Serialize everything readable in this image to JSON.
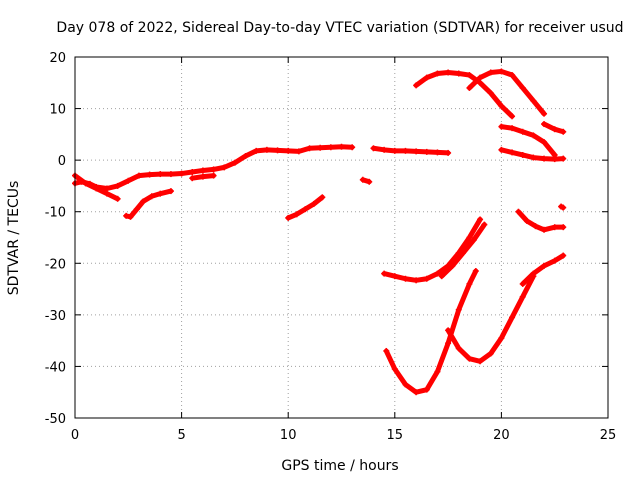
{
  "chart_data": {
    "type": "scatter",
    "title": "Day 078 of 2022, Sidereal Day-to-day VTEC variation (SDTVAR) for receiver usud",
    "xlabel": "GPS time / hours",
    "ylabel": "SDTVAR / TECUs",
    "xlim": [
      0,
      25
    ],
    "ylim": [
      -50,
      20
    ],
    "xticks": [
      0,
      5,
      10,
      15,
      20,
      25
    ],
    "yticks": [
      -50,
      -40,
      -30,
      -20,
      -10,
      0,
      10,
      20
    ],
    "grid": true,
    "marker": "plus",
    "color": "#ff0000",
    "series": [
      {
        "x": [
          0.0,
          0.3,
          0.7,
          1.0,
          1.5,
          2.0,
          2.5,
          3.0,
          3.5,
          4.0,
          4.5,
          5.0,
          5.5,
          6.0,
          6.5,
          7.0,
          7.5,
          8.0,
          8.5,
          9.0,
          9.5,
          10.0,
          10.5,
          11.0,
          11.5,
          12.0,
          12.5,
          13.0
        ],
        "y": [
          -4.5,
          -4.2,
          -4.6,
          -5.2,
          -5.5,
          -5.0,
          -4.0,
          -3.0,
          -2.8,
          -2.7,
          -2.7,
          -2.6,
          -2.3,
          -2.0,
          -1.8,
          -1.4,
          -0.5,
          0.8,
          1.8,
          2.0,
          1.9,
          1.8,
          1.7,
          2.3,
          2.4,
          2.5,
          2.6,
          2.5
        ]
      },
      {
        "x": [
          0.0,
          0.5,
          1.0,
          1.5,
          2.0
        ],
        "y": [
          -3.0,
          -4.5,
          -5.5,
          -6.5,
          -7.5
        ]
      },
      {
        "x": [
          2.4,
          2.6,
          2.9,
          3.2,
          3.6,
          4.0,
          4.5
        ],
        "y": [
          -10.8,
          -11.0,
          -9.5,
          -8.0,
          -7.0,
          -6.5,
          -6.0
        ]
      },
      {
        "x": [
          5.5,
          6.0,
          6.5
        ],
        "y": [
          -3.5,
          -3.2,
          -3.0
        ]
      },
      {
        "x": [
          10.0,
          10.4,
          10.8,
          11.2,
          11.6
        ],
        "y": [
          -11.2,
          -10.5,
          -9.5,
          -8.5,
          -7.2
        ]
      },
      {
        "x": [
          13.5,
          13.8
        ],
        "y": [
          -3.8,
          -4.2
        ]
      },
      {
        "x": [
          14.0,
          14.5,
          15.0,
          15.5,
          16.0,
          16.5,
          17.0,
          17.5
        ],
        "y": [
          2.3,
          2.0,
          1.8,
          1.8,
          1.7,
          1.6,
          1.5,
          1.4
        ]
      },
      {
        "x": [
          14.5,
          15.0,
          15.5,
          16.0,
          16.5,
          17.0,
          17.5,
          18.0,
          18.5,
          19.0
        ],
        "y": [
          -22.0,
          -22.5,
          -23.0,
          -23.3,
          -23.0,
          -22.0,
          -20.5,
          -18.0,
          -15.0,
          -11.5
        ]
      },
      {
        "x": [
          17.2,
          17.7,
          18.2,
          18.7,
          19.2
        ],
        "y": [
          -22.5,
          -20.5,
          -18.0,
          -15.5,
          -12.5
        ]
      },
      {
        "x": [
          14.6,
          15.0,
          15.5,
          16.0,
          16.5,
          17.0,
          17.5,
          18.0,
          18.5,
          18.8
        ],
        "y": [
          -37.0,
          -40.5,
          -43.5,
          -45.0,
          -44.5,
          -41.0,
          -35.5,
          -29.0,
          -24.0,
          -21.5
        ]
      },
      {
        "x": [
          17.5,
          18.0,
          18.5,
          19.0,
          19.5,
          20.0,
          20.5,
          21.0,
          21.5
        ],
        "y": [
          -33.0,
          -36.5,
          -38.5,
          -39.0,
          -37.5,
          -34.5,
          -30.5,
          -26.5,
          -22.5
        ]
      },
      {
        "x": [
          21.0,
          21.5,
          22.0,
          22.5,
          22.9
        ],
        "y": [
          -24.0,
          -22.0,
          -20.5,
          -19.5,
          -18.5
        ]
      },
      {
        "x": [
          20.8,
          21.2,
          21.6,
          22.0,
          22.5,
          22.9
        ],
        "y": [
          -10.0,
          -11.8,
          -12.8,
          -13.5,
          -13.0,
          -13.0
        ]
      },
      {
        "x": [
          22.8,
          22.9
        ],
        "y": [
          -9.0,
          -9.2
        ]
      },
      {
        "x": [
          16.0,
          16.5,
          17.0,
          17.5,
          18.0,
          18.5,
          19.0,
          19.5,
          20.0,
          20.5
        ],
        "y": [
          14.5,
          16.0,
          16.8,
          17.0,
          16.8,
          16.5,
          15.0,
          13.0,
          10.5,
          8.5
        ]
      },
      {
        "x": [
          18.5,
          19.0,
          19.5,
          20.0,
          20.5,
          21.0,
          21.5,
          22.0
        ],
        "y": [
          14.0,
          16.0,
          17.0,
          17.2,
          16.5,
          14.0,
          11.5,
          9.0
        ]
      },
      {
        "x": [
          20.0,
          20.5,
          21.0,
          21.5,
          22.0,
          22.5
        ],
        "y": [
          6.5,
          6.2,
          5.5,
          4.8,
          3.5,
          1.0
        ]
      },
      {
        "x": [
          22.0,
          22.5,
          22.9
        ],
        "y": [
          7.0,
          6.0,
          5.5
        ]
      },
      {
        "x": [
          20.0,
          20.5,
          21.0,
          21.5,
          22.0,
          22.5,
          22.9
        ],
        "y": [
          2.0,
          1.5,
          1.0,
          0.5,
          0.3,
          0.2,
          0.3
        ]
      }
    ]
  }
}
